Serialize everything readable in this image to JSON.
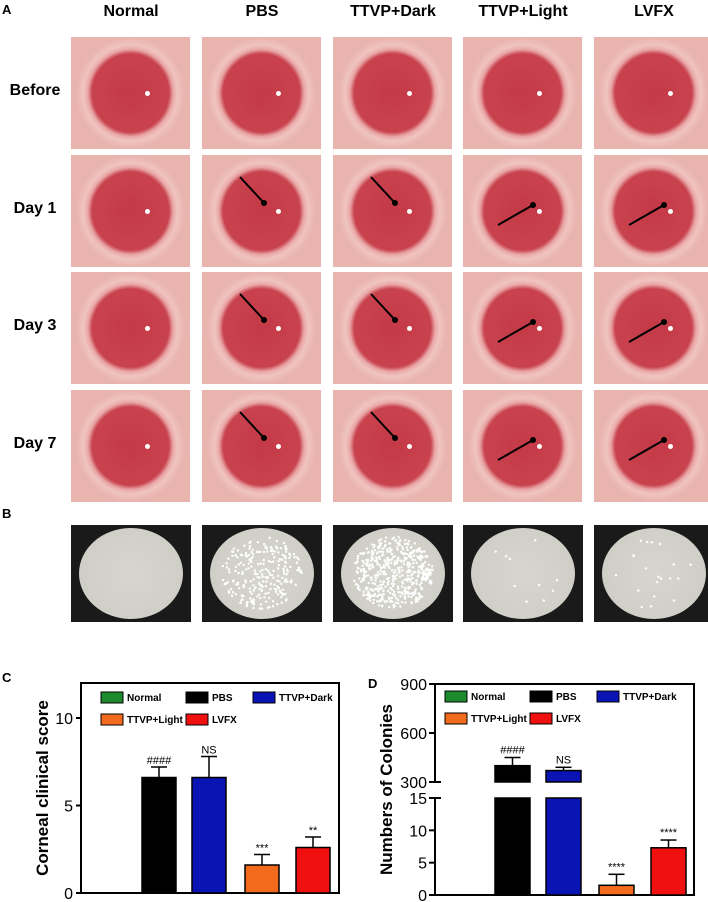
{
  "panels": {
    "a": "A",
    "b": "B",
    "c": "C",
    "d": "D"
  },
  "columns": [
    "Normal",
    "PBS",
    "TTVP+Dark",
    "TTVP+Light",
    "LVFX"
  ],
  "rows": [
    "Before",
    "Day 1",
    "Day 3",
    "Day 7"
  ],
  "colors": {
    "Normal": "#1e8a2e",
    "PBS": "#000000",
    "TTVP+Dark": "#0a14b4",
    "TTVP+Light": "#f26a1b",
    "LVFX": "#f01010"
  },
  "plate_colony_density": [
    0,
    0.5,
    1,
    0.02,
    0.04
  ],
  "chart_data": [
    {
      "type": "bar",
      "title": "",
      "ylabel": "Corneal clinical score",
      "xlabel": "",
      "ylim": [
        0,
        12
      ],
      "yticks": [
        "0",
        "5",
        "10"
      ],
      "legend": "top",
      "legend_entries": [
        "Normal",
        "PBS",
        "TTVP+Dark",
        "TTVP+Light",
        "LVFX"
      ],
      "categories": [
        "Normal",
        "PBS",
        "TTVP+Dark",
        "TTVP+Light",
        "LVFX"
      ],
      "values": [
        0,
        6.6,
        6.6,
        1.6,
        2.6
      ],
      "errors": [
        0,
        0.6,
        1.2,
        0.6,
        0.6
      ],
      "annotations": [
        "",
        "####",
        "NS",
        "***",
        "**"
      ]
    },
    {
      "type": "bar",
      "title": "",
      "ylabel": "Numbers of Colonies",
      "xlabel": "",
      "broken_axis": true,
      "ylim_lower": [
        0,
        15
      ],
      "ylim_upper": [
        300,
        900
      ],
      "yticks": [
        "0",
        "5",
        "10",
        "15",
        "300",
        "600",
        "900"
      ],
      "legend": "top",
      "legend_entries": [
        "Normal",
        "PBS",
        "TTVP+Dark",
        "TTVP+Light",
        "LVFX"
      ],
      "categories": [
        "Normal",
        "PBS",
        "TTVP+Dark",
        "TTVP+Light",
        "LVFX"
      ],
      "values": [
        0,
        400,
        370,
        1.5,
        7.3
      ],
      "errors": [
        0,
        50,
        20,
        1.7,
        1.2
      ],
      "annotations": [
        "",
        "####",
        "NS",
        "****",
        "****"
      ]
    }
  ]
}
